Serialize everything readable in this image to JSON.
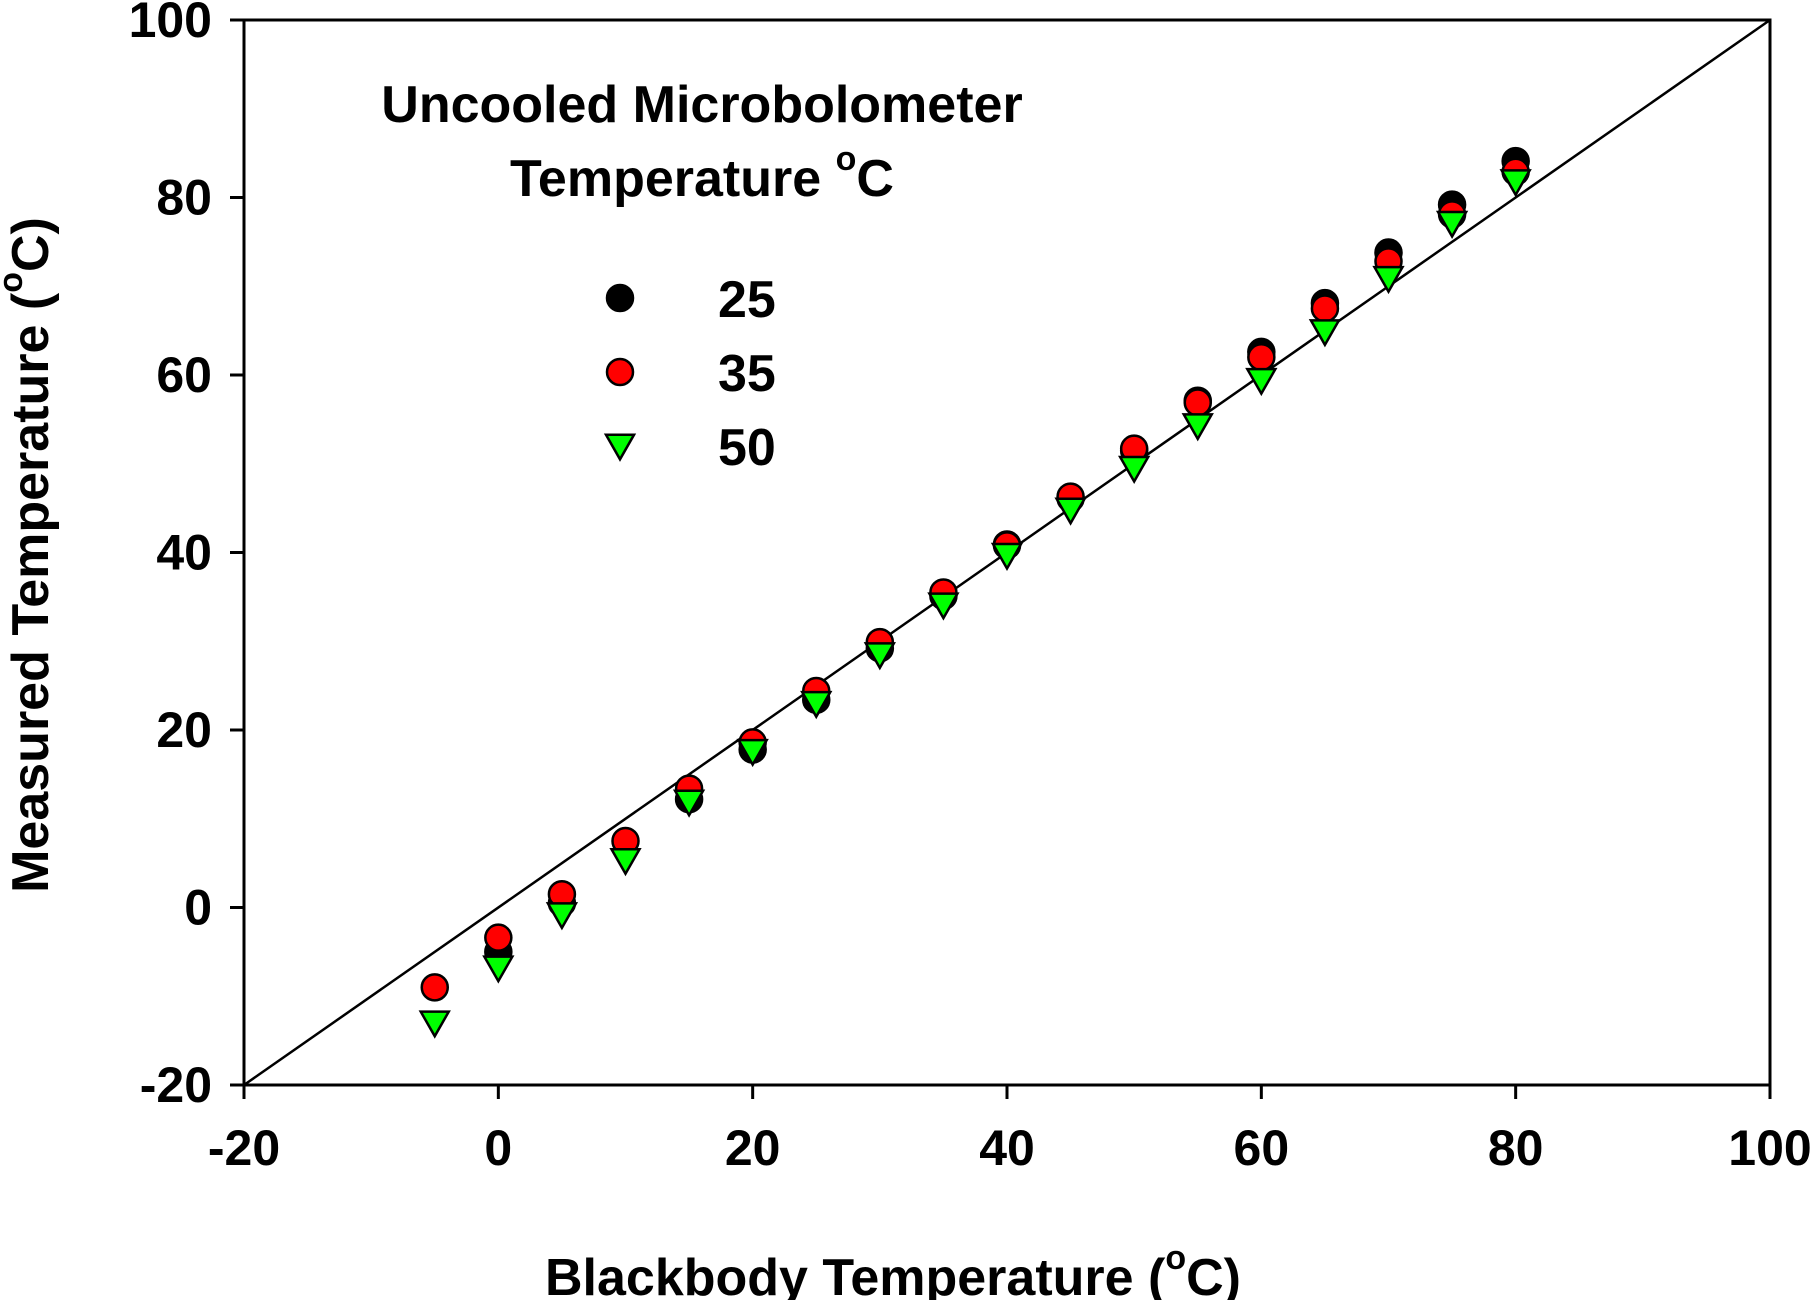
{
  "chart_data": {
    "type": "scatter",
    "xlabel": "Blackbody Temperature (",
    "ylabel": "Measured Temperature (",
    "unit_symbol": "o",
    "unit_letter": "C",
    "unit_close": ")",
    "xlim": [
      -20,
      100
    ],
    "ylim": [
      -20,
      100
    ],
    "xticks": [
      "-20",
      "0",
      "20",
      "40",
      "60",
      "80",
      "100"
    ],
    "yticks": [
      "-20",
      "0",
      "20",
      "40",
      "60",
      "80",
      "100"
    ],
    "grid": false,
    "legend_placement": "top-left",
    "legend_title_line1": "Uncooled Microbolometer",
    "legend_title_line2": "Temperature ",
    "legend_title_unit_symbol": "o",
    "legend_title_unit_letter": "C",
    "reference_line": {
      "x": [
        -20,
        100
      ],
      "y": [
        -20,
        100
      ],
      "color": "#000000"
    },
    "series": [
      {
        "name": "25",
        "marker": "circle",
        "color": "#000000",
        "x": [
          0,
          5,
          15,
          20,
          25,
          30,
          35,
          40,
          45,
          50,
          55,
          60,
          65,
          70,
          75,
          80
        ],
        "y": [
          -5,
          0.5,
          12.2,
          17.8,
          23.4,
          29.2,
          35.1,
          40.9,
          46.1,
          51.5,
          57.1,
          62.6,
          68.1,
          73.8,
          79.2,
          84.1
        ]
      },
      {
        "name": "35",
        "marker": "circle",
        "color": "#ff0000",
        "x": [
          -5,
          0,
          5,
          10,
          15,
          20,
          25,
          30,
          35,
          40,
          45,
          50,
          55,
          60,
          65,
          70,
          75,
          80
        ],
        "y": [
          -9,
          -3.4,
          1.5,
          7.5,
          13.4,
          18.6,
          24.4,
          29.9,
          35.5,
          40.8,
          46.3,
          51.7,
          56.9,
          62,
          67.5,
          72.8,
          78.1,
          82.9
        ]
      },
      {
        "name": "50",
        "marker": "triangle-down",
        "color": "#00ff00",
        "x": [
          -5,
          0,
          5,
          10,
          15,
          20,
          25,
          30,
          35,
          40,
          45,
          50,
          55,
          60,
          65,
          70,
          75,
          80
        ],
        "y": [
          -13,
          -6.8,
          -0.8,
          5.3,
          11.9,
          17.6,
          23,
          28.5,
          34.1,
          39.7,
          44.8,
          49.5,
          54.3,
          59.4,
          64.9,
          70.9,
          77.1,
          81.8
        ]
      }
    ]
  }
}
